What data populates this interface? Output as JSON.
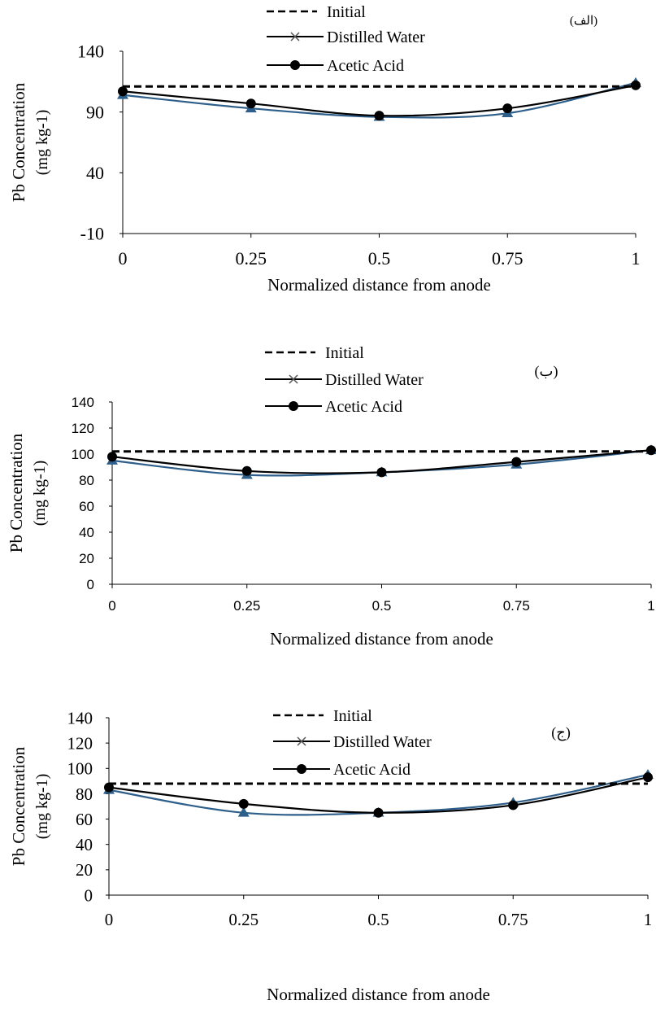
{
  "chart_data": [
    {
      "type": "line",
      "panel_label": "(الف)",
      "x": [
        0,
        0.25,
        0.5,
        0.75,
        1
      ],
      "xtick_labels": [
        "0",
        "0.25",
        "0.5",
        "0.75",
        "1"
      ],
      "ytick_labels": [
        "-10",
        "40",
        "90",
        "140"
      ],
      "ylim": [
        -10,
        140
      ],
      "xlim": [
        0,
        1
      ],
      "xlabel": "Normalized distance from anode",
      "ylabel_line1": "Pb Concentration",
      "ylabel_line2": "(mg kg-1)",
      "grid": false,
      "legend_position": "top",
      "series": [
        {
          "name": "Initial",
          "values": [
            111,
            111,
            111,
            111,
            111
          ],
          "color": "#000000",
          "style": "dashed",
          "marker": "none"
        },
        {
          "name": "Distilled Water",
          "values": [
            104,
            93,
            86,
            89,
            114
          ],
          "color": "#2e5f8a",
          "style": "solid",
          "marker": "triangle"
        },
        {
          "name": "Acetic Acid",
          "values": [
            107,
            97,
            87,
            93,
            112
          ],
          "color": "#000000",
          "style": "solid",
          "marker": "circle"
        }
      ]
    },
    {
      "type": "line",
      "panel_label": "(ب)",
      "x": [
        0,
        0.25,
        0.5,
        0.75,
        1
      ],
      "xtick_labels": [
        "0",
        "0.25",
        "0.5",
        "0.75",
        "1"
      ],
      "ytick_labels": [
        "0",
        "20",
        "40",
        "60",
        "80",
        "100",
        "120",
        "140"
      ],
      "ylim": [
        0,
        140
      ],
      "xlim": [
        0,
        1
      ],
      "xlabel": "Normalized distance from anode",
      "ylabel_line1": "Pb Concentration",
      "ylabel_line2": "(mg kg-1)",
      "grid": false,
      "legend_position": "top",
      "series": [
        {
          "name": "Initial",
          "values": [
            102,
            102,
            102,
            102,
            102
          ],
          "color": "#000000",
          "style": "dashed",
          "marker": "none"
        },
        {
          "name": "Distilled Water",
          "values": [
            95,
            84,
            86,
            92,
            103
          ],
          "color": "#2e5f8a",
          "style": "solid",
          "marker": "triangle"
        },
        {
          "name": "Acetic Acid",
          "values": [
            98,
            87,
            86,
            94,
            103
          ],
          "color": "#000000",
          "style": "solid",
          "marker": "circle"
        }
      ]
    },
    {
      "type": "line",
      "panel_label": "(ج)",
      "x": [
        0,
        0.25,
        0.5,
        0.75,
        1
      ],
      "xtick_labels": [
        "0",
        "0.25",
        "0.5",
        "0.75",
        "1"
      ],
      "ytick_labels": [
        "0",
        "20",
        "40",
        "60",
        "80",
        "100",
        "120",
        "140"
      ],
      "ylim": [
        0,
        140
      ],
      "xlim": [
        0,
        1
      ],
      "xlabel": "Normalized distance from anode",
      "ylabel_line1": "Pb Concentration",
      "ylabel_line2": "(mg kg-1)",
      "grid": false,
      "legend_position": "top",
      "series": [
        {
          "name": "Initial",
          "values": [
            88,
            88,
            88,
            88,
            88
          ],
          "color": "#000000",
          "style": "dashed",
          "marker": "none"
        },
        {
          "name": "Distilled Water",
          "values": [
            83,
            65,
            65,
            73,
            95
          ],
          "color": "#2e5f8a",
          "style": "solid",
          "marker": "triangle"
        },
        {
          "name": "Acetic Acid",
          "values": [
            85,
            72,
            65,
            71,
            93
          ],
          "color": "#000000",
          "style": "solid",
          "marker": "circle"
        }
      ]
    }
  ]
}
